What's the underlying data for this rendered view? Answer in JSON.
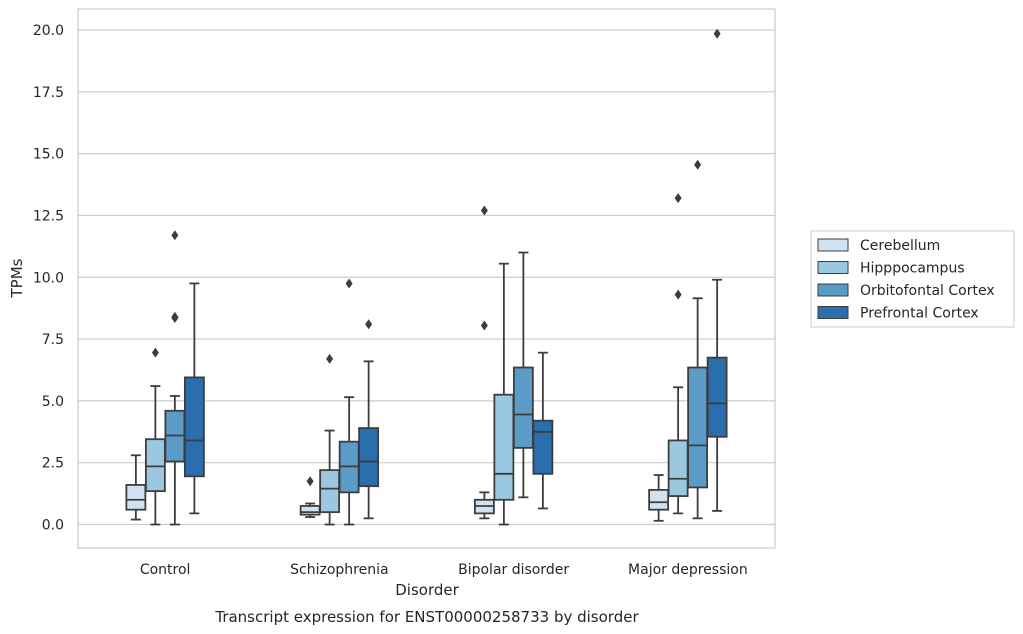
{
  "chart_data": {
    "type": "box",
    "caption": "Transcript expression for ENST00000258733 by disorder",
    "xlabel": "Disorder",
    "ylabel": "TPMs",
    "ylim": [
      -0.95,
      20.85
    ],
    "yticks": [
      "0.0",
      "2.5",
      "5.0",
      "7.5",
      "10.0",
      "12.5",
      "15.0",
      "17.5",
      "20.0"
    ],
    "grid": true,
    "legend_position": "right",
    "categories": [
      "Control",
      "Schizophrenia",
      "Bipolar disorder",
      "Major depression"
    ],
    "series": [
      {
        "name": "Cerebellum",
        "color": "#d0e1f2",
        "boxes": [
          {
            "whisker_low": 0.2,
            "q1": 0.6,
            "median": 1.0,
            "q3": 1.6,
            "whisker_high": 2.8,
            "outliers": []
          },
          {
            "whisker_low": 0.3,
            "q1": 0.4,
            "median": 0.5,
            "q3": 0.75,
            "whisker_high": 0.85,
            "outliers": [
              1.75
            ]
          },
          {
            "whisker_low": 0.25,
            "q1": 0.45,
            "median": 0.75,
            "q3": 1.0,
            "whisker_high": 1.3,
            "outliers": [
              8.05,
              12.7
            ]
          },
          {
            "whisker_low": 0.15,
            "q1": 0.6,
            "median": 0.9,
            "q3": 1.4,
            "whisker_high": 2.0,
            "outliers": []
          }
        ]
      },
      {
        "name": "Hipppocampus",
        "color": "#9ac8e0",
        "boxes": [
          {
            "whisker_low": 0.0,
            "q1": 1.35,
            "median": 2.35,
            "q3": 3.45,
            "whisker_high": 5.6,
            "outliers": [
              6.95
            ]
          },
          {
            "whisker_low": 0.0,
            "q1": 0.5,
            "median": 1.45,
            "q3": 2.2,
            "whisker_high": 3.8,
            "outliers": [
              6.7
            ]
          },
          {
            "whisker_low": 0.0,
            "q1": 1.0,
            "median": 2.05,
            "q3": 5.25,
            "whisker_high": 10.55,
            "outliers": []
          },
          {
            "whisker_low": 0.45,
            "q1": 1.15,
            "median": 1.85,
            "q3": 3.4,
            "whisker_high": 5.55,
            "outliers": [
              9.3,
              13.2
            ]
          }
        ]
      },
      {
        "name": "Orbitofontal Cortex",
        "color": "#5b9bc8",
        "boxes": [
          {
            "whisker_low": 0.0,
            "q1": 2.55,
            "median": 3.6,
            "q3": 4.6,
            "whisker_high": 5.2,
            "outliers": [
              8.35,
              8.4,
              11.7
            ]
          },
          {
            "whisker_low": 0.0,
            "q1": 1.3,
            "median": 2.35,
            "q3": 3.35,
            "whisker_high": 5.15,
            "outliers": [
              9.75
            ]
          },
          {
            "whisker_low": 1.1,
            "q1": 3.1,
            "median": 4.45,
            "q3": 6.35,
            "whisker_high": 11.0,
            "outliers": []
          },
          {
            "whisker_low": 0.25,
            "q1": 1.5,
            "median": 3.2,
            "q3": 6.35,
            "whisker_high": 9.15,
            "outliers": [
              14.55
            ]
          }
        ]
      },
      {
        "name": "Prefrontal Cortex",
        "color": "#2b6ead",
        "boxes": [
          {
            "whisker_low": 0.45,
            "q1": 1.95,
            "median": 3.4,
            "q3": 5.95,
            "whisker_high": 9.75,
            "outliers": []
          },
          {
            "whisker_low": 0.25,
            "q1": 1.55,
            "median": 2.55,
            "q3": 3.9,
            "whisker_high": 6.6,
            "outliers": [
              8.1
            ]
          },
          {
            "whisker_low": 0.65,
            "q1": 2.05,
            "median": 3.75,
            "q3": 4.2,
            "whisker_high": 6.95,
            "outliers": []
          },
          {
            "whisker_low": 0.55,
            "q1": 3.55,
            "median": 4.9,
            "q3": 6.75,
            "whisker_high": 9.9,
            "outliers": [
              19.85
            ]
          }
        ]
      }
    ]
  }
}
